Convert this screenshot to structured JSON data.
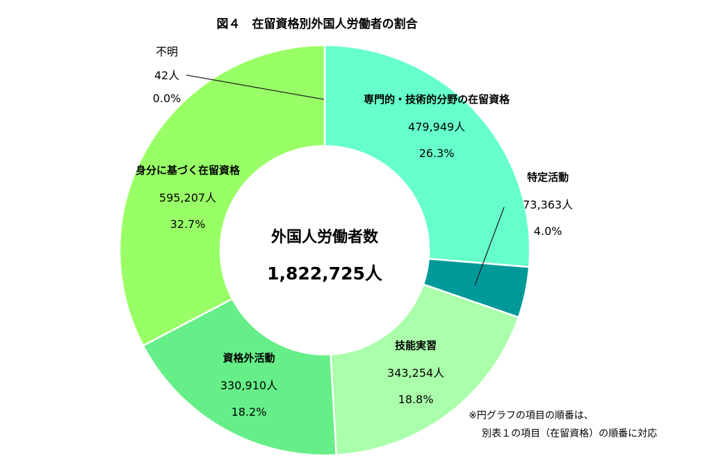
{
  "chart_data": {
    "type": "pie",
    "title": "図４　在留資格別外国人労働者の割合",
    "center_label": "外国人労働者数",
    "total": "1,822,725人",
    "slices": [
      {
        "name": "専門的・技術的分野の在留資格",
        "count": "479,949人",
        "percent": "26.3%",
        "value": 26.3,
        "color": "#66ffcc"
      },
      {
        "name": "特定活動",
        "count": "73,363人",
        "percent": "4.0%",
        "value": 4.0,
        "color": "#009999"
      },
      {
        "name": "技能実習",
        "count": "343,254人",
        "percent": "18.8%",
        "value": 18.8,
        "color": "#aaffaa"
      },
      {
        "name": "資格外活動",
        "count": "330,910人",
        "percent": "18.2%",
        "value": 18.2,
        "color": "#66ee88"
      },
      {
        "name": "身分に基づく在留資格",
        "count": "595,207人",
        "percent": "32.7%",
        "value": 32.7,
        "color": "#99ff66"
      },
      {
        "name": "不明",
        "count": "42人",
        "percent": "0.0%",
        "value": 0.0,
        "color": "#cccccc"
      }
    ],
    "note_lines": [
      "※円グラフの項目の順番は、",
      "別表１の項目（在留資格）の順番に対応"
    ]
  }
}
